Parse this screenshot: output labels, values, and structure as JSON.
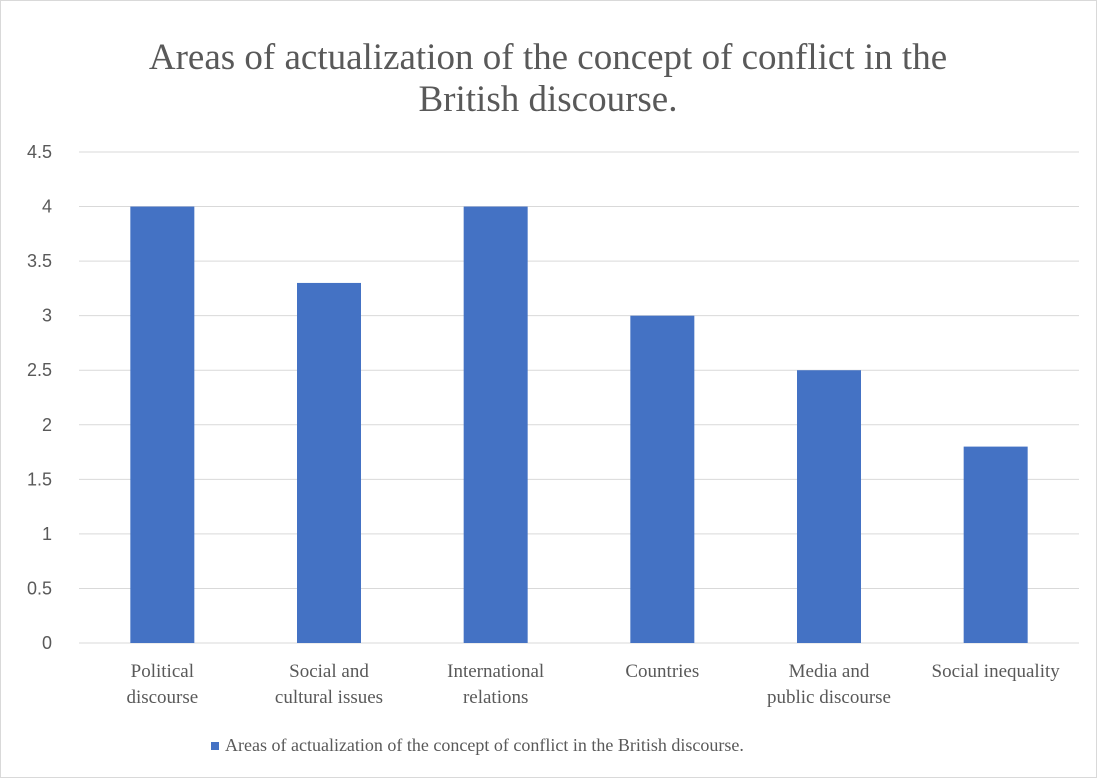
{
  "chart_data": {
    "type": "bar",
    "title": "Areas of actualization of the concept of conflict in the British discourse.",
    "title_lines": [
      "Areas of actualization of the concept of conflict in the",
      "British discourse."
    ],
    "categories": [
      "Political discourse",
      "Social and cultural issues",
      "International relations",
      "Countries",
      "Media and public discourse",
      "Social inequality"
    ],
    "category_label_lines": [
      [
        "Political",
        "discourse"
      ],
      [
        "Social and",
        "cultural issues"
      ],
      [
        "International",
        "relations"
      ],
      [
        "Countries"
      ],
      [
        "Media and",
        "public discourse"
      ],
      [
        "Social inequality"
      ]
    ],
    "series": [
      {
        "name": "Areas of actualization of the concept of conflict in the British discourse.",
        "values": [
          4,
          3.3,
          4,
          3,
          2.5,
          1.8
        ],
        "color": "#4472c4"
      }
    ],
    "xlabel": "",
    "ylabel": "",
    "ylim": [
      0,
      4.5
    ],
    "yticks": [
      "0",
      "0.5",
      "1",
      "1.5",
      "2",
      "2.5",
      "3",
      "3.5",
      "4",
      "4.5"
    ],
    "grid": true,
    "gridline_color": "#d9d9d9",
    "legend_position": "bottom"
  }
}
